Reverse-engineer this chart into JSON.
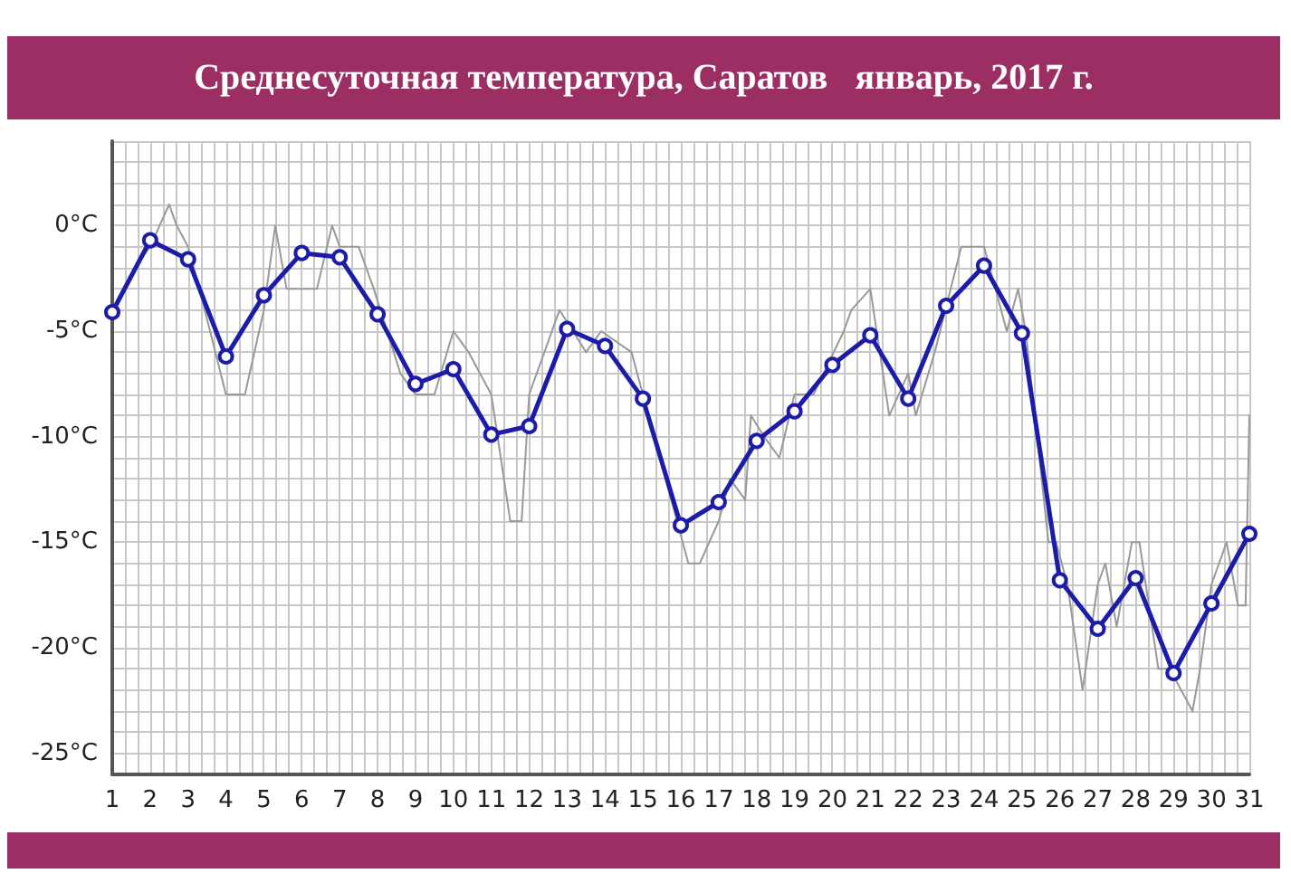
{
  "chart_data": {
    "type": "line",
    "title": "Среднесуточная температура, Саратов   январь, 2017 г.",
    "x": [
      1,
      2,
      3,
      4,
      5,
      6,
      7,
      8,
      9,
      10,
      11,
      12,
      13,
      14,
      15,
      16,
      17,
      18,
      19,
      20,
      21,
      22,
      23,
      24,
      25,
      26,
      27,
      28,
      29,
      30,
      31
    ],
    "xlim": [
      1,
      31
    ],
    "xticks": [
      1,
      2,
      3,
      4,
      5,
      6,
      7,
      8,
      9,
      10,
      11,
      12,
      13,
      14,
      15,
      16,
      17,
      18,
      19,
      20,
      21,
      22,
      23,
      24,
      25,
      26,
      27,
      28,
      29,
      30,
      31
    ],
    "ylim": [
      -26,
      4
    ],
    "yticks": [
      {
        "value": -25,
        "label": "-25°C"
      },
      {
        "value": -20,
        "label": "-20°C"
      },
      {
        "value": -15,
        "label": "-15°C"
      },
      {
        "value": -10,
        "label": "-10°C"
      },
      {
        "value": -5,
        "label": "-5°C"
      },
      {
        "value": 0,
        "label": "0°C"
      }
    ],
    "grid": true,
    "series": [
      {
        "color": "#999999",
        "marker": "none",
        "x": [
          1,
          1.3,
          1.6,
          2,
          2.5,
          2.7,
          3,
          3.3,
          4,
          4.5,
          5,
          5.3,
          5.6,
          6,
          6.4,
          6.8,
          7,
          7.5,
          7.9,
          8.6,
          9,
          9.5,
          10,
          10.4,
          11,
          11.5,
          11.8,
          12,
          12.8,
          13.5,
          13.9,
          14.7,
          15,
          15.9,
          16.2,
          16.5,
          17,
          17.3,
          17.7,
          17.85,
          18.2,
          18.6,
          19,
          19.5,
          20.3,
          20.5,
          21,
          21.5,
          22,
          22.2,
          22.7,
          23.4,
          24,
          24.3,
          24.6,
          24.9,
          25.1,
          25.7,
          25.9,
          26.2,
          26.6,
          27,
          27.2,
          27.5,
          27.9,
          28.1,
          28.6,
          28.9,
          29.5,
          29.7,
          30,
          30.4,
          30.7,
          30.9,
          31
        ],
        "values": [
          -4,
          -3,
          -2,
          -1,
          1,
          0,
          -1,
          -3,
          -8,
          -8,
          -4,
          0,
          -3,
          -3,
          -3,
          0,
          -1,
          -1,
          -3,
          -7,
          -8,
          -8,
          -5,
          -6,
          -8,
          -14,
          -14,
          -8,
          -4,
          -6,
          -5,
          -6,
          -8,
          -14,
          -16,
          -16,
          -14,
          -12,
          -13,
          -9,
          -10,
          -11,
          -8,
          -8,
          -5,
          -4,
          -3,
          -9,
          -7,
          -9,
          -6,
          -1,
          -1,
          -3,
          -5,
          -3,
          -5,
          -15,
          -15,
          -17,
          -22,
          -17,
          -16,
          -19,
          -15,
          -15,
          -21,
          -21,
          -23,
          -21,
          -17,
          -15,
          -18,
          -18,
          -9
        ]
      },
      {
        "color": "#1c1ca8",
        "marker": "circle",
        "values": [
          -4.1,
          -0.7,
          -1.6,
          -6.2,
          -3.3,
          -1.3,
          -1.5,
          -4.2,
          -7.5,
          -6.8,
          -9.9,
          -9.5,
          -4.9,
          -5.7,
          -8.2,
          -14.2,
          -13.1,
          -10.2,
          -8.8,
          -6.6,
          -5.2,
          -8.2,
          -3.8,
          -1.9,
          -5.1,
          -16.8,
          -19.1,
          -16.7,
          -21.2,
          -17.9,
          -14.6
        ]
      }
    ]
  }
}
